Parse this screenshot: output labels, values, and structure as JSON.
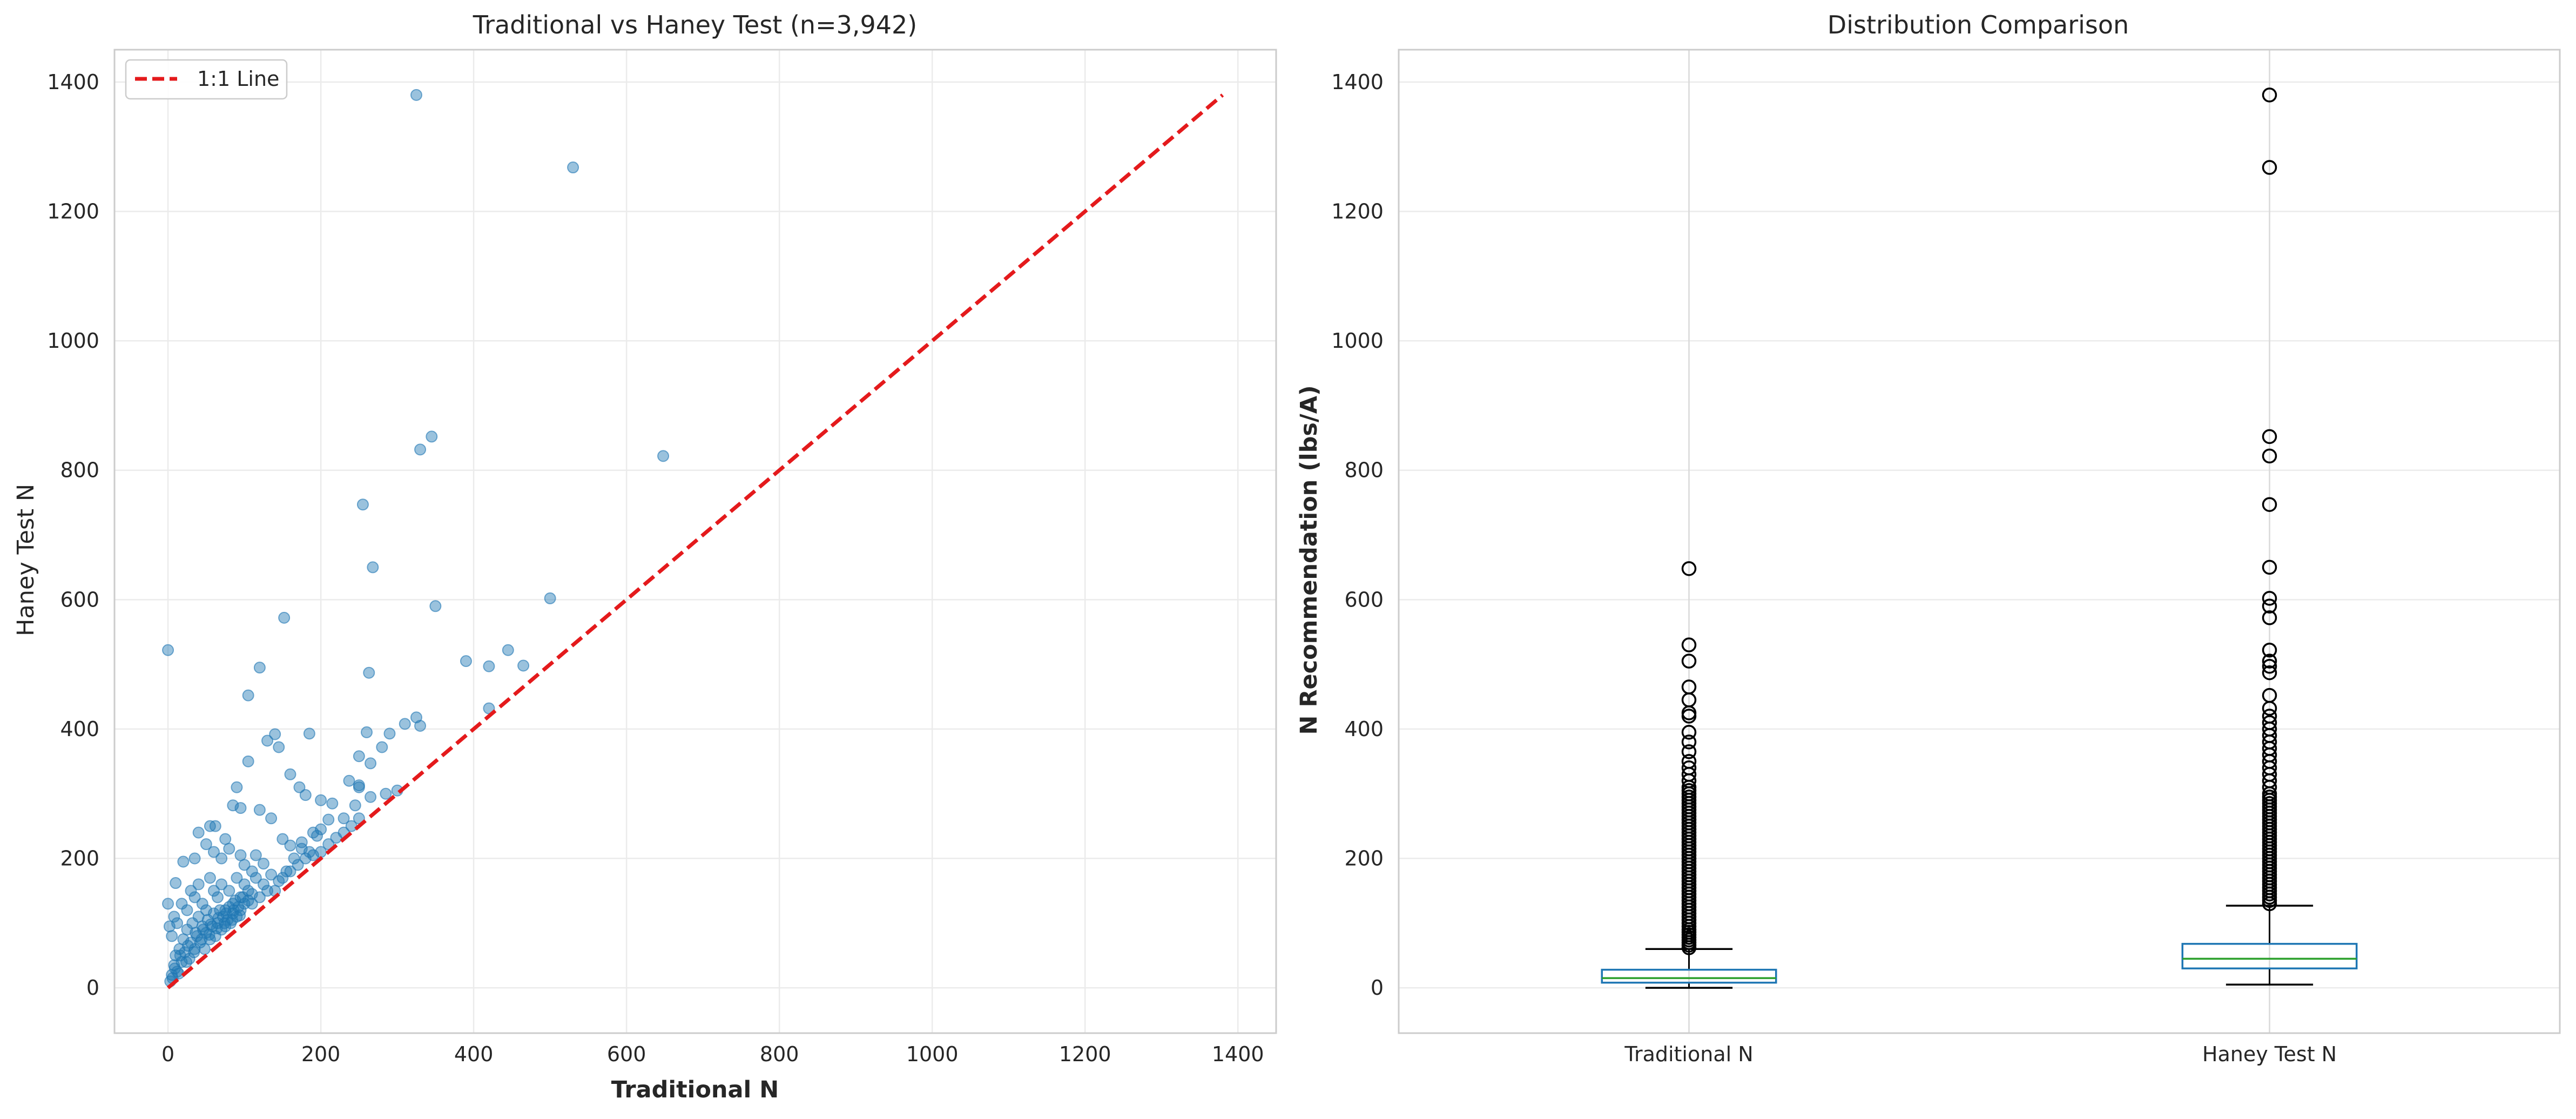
{
  "chart_data": [
    {
      "type": "scatter",
      "title": "Traditional vs Haney Test (n=3,942)",
      "xlabel": "Traditional N",
      "ylabel": "Haney Test N",
      "xlim": [
        -70,
        1450
      ],
      "ylim": [
        -70,
        1450
      ],
      "xticks": [
        0,
        200,
        400,
        600,
        800,
        1000,
        1200,
        1400
      ],
      "yticks": [
        0,
        200,
        400,
        600,
        800,
        1000,
        1200,
        1400
      ],
      "grid": true,
      "legend": {
        "placement": "top-left",
        "entries": [
          "1:1 Line"
        ]
      },
      "reference_line": {
        "name": "1:1 Line",
        "from": [
          0,
          0
        ],
        "to": [
          1380,
          1380
        ],
        "color": "#e41a1c",
        "style": "dashed"
      },
      "point_color": "#1f77b4",
      "series": [
        {
          "points": [
            [
              0,
              522
            ],
            [
              325,
              1380
            ],
            [
              530,
              1268
            ],
            [
              345,
              852
            ],
            [
              330,
              832
            ],
            [
              648,
              822
            ],
            [
              255,
              747
            ],
            [
              268,
              650
            ],
            [
              152,
              572
            ],
            [
              350,
              590
            ],
            [
              500,
              602
            ],
            [
              120,
              495
            ],
            [
              263,
              487
            ],
            [
              390,
              505
            ],
            [
              420,
              497
            ],
            [
              445,
              522
            ],
            [
              465,
              498
            ],
            [
              105,
              452
            ],
            [
              420,
              432
            ],
            [
              325,
              418
            ],
            [
              330,
              405
            ],
            [
              310,
              408
            ],
            [
              290,
              393
            ],
            [
              280,
              372
            ],
            [
              260,
              395
            ],
            [
              250,
              358
            ],
            [
              265,
              347
            ],
            [
              250,
              313
            ],
            [
              140,
              392
            ],
            [
              185,
              393
            ],
            [
              130,
              382
            ],
            [
              145,
              372
            ],
            [
              105,
              350
            ],
            [
              160,
              330
            ],
            [
              172,
              310
            ],
            [
              180,
              298
            ],
            [
              200,
              290
            ],
            [
              215,
              285
            ],
            [
              237,
              320
            ],
            [
              250,
              310
            ],
            [
              285,
              300
            ],
            [
              300,
              305
            ],
            [
              210,
              260
            ],
            [
              230,
              262
            ],
            [
              265,
              295
            ],
            [
              245,
              282
            ],
            [
              200,
              245
            ],
            [
              190,
              240
            ],
            [
              175,
              225
            ],
            [
              160,
              220
            ],
            [
              150,
              230
            ],
            [
              135,
              262
            ],
            [
              120,
              275
            ],
            [
              95,
              278
            ],
            [
              90,
              310
            ],
            [
              85,
              282
            ],
            [
              75,
              230
            ],
            [
              62,
              250
            ],
            [
              55,
              250
            ],
            [
              40,
              240
            ],
            [
              20,
              195
            ],
            [
              10,
              162
            ],
            [
              35,
              200
            ],
            [
              50,
              222
            ],
            [
              60,
              210
            ],
            [
              70,
              200
            ],
            [
              80,
              215
            ],
            [
              95,
              205
            ],
            [
              100,
              190
            ],
            [
              110,
              180
            ],
            [
              115,
              205
            ],
            [
              125,
              192
            ],
            [
              135,
              175
            ],
            [
              145,
              165
            ],
            [
              155,
              180
            ],
            [
              165,
              200
            ],
            [
              175,
              215
            ],
            [
              185,
              210
            ],
            [
              195,
              235
            ],
            [
              0,
              130
            ],
            [
              2,
              95
            ],
            [
              5,
              80
            ],
            [
              8,
              110
            ],
            [
              12,
              100
            ],
            [
              18,
              130
            ],
            [
              25,
              120
            ],
            [
              30,
              150
            ],
            [
              35,
              140
            ],
            [
              40,
              160
            ],
            [
              45,
              130
            ],
            [
              50,
              120
            ],
            [
              55,
              170
            ],
            [
              60,
              150
            ],
            [
              65,
              140
            ],
            [
              70,
              160
            ],
            [
              75,
              120
            ],
            [
              80,
              150
            ],
            [
              85,
              130
            ],
            [
              90,
              170
            ],
            [
              95,
              140
            ],
            [
              100,
              160
            ],
            [
              105,
              150
            ],
            [
              110,
              130
            ],
            [
              115,
              170
            ],
            [
              120,
              140
            ],
            [
              125,
              160
            ],
            [
              130,
              150
            ],
            [
              140,
              150
            ],
            [
              150,
              170
            ],
            [
              160,
              180
            ],
            [
              170,
              190
            ],
            [
              180,
              200
            ],
            [
              190,
              205
            ],
            [
              200,
              210
            ],
            [
              210,
              222
            ],
            [
              220,
              232
            ],
            [
              230,
              240
            ],
            [
              240,
              250
            ],
            [
              250,
              262
            ],
            [
              5,
              20
            ],
            [
              8,
              35
            ],
            [
              10,
              50
            ],
            [
              12,
              25
            ],
            [
              15,
              60
            ],
            [
              18,
              40
            ],
            [
              20,
              75
            ],
            [
              22,
              55
            ],
            [
              25,
              90
            ],
            [
              28,
              45
            ],
            [
              30,
              70
            ],
            [
              32,
              100
            ],
            [
              35,
              60
            ],
            [
              38,
              80
            ],
            [
              40,
              110
            ],
            [
              42,
              70
            ],
            [
              45,
              95
            ],
            [
              48,
              60
            ],
            [
              50,
              85
            ],
            [
              52,
              105
            ],
            [
              55,
              75
            ],
            [
              58,
              95
            ],
            [
              60,
              115
            ],
            [
              62,
              80
            ],
            [
              65,
              100
            ],
            [
              68,
              120
            ],
            [
              70,
              90
            ],
            [
              72,
              110
            ],
            [
              75,
              95
            ],
            [
              78,
              105
            ],
            [
              80,
              125
            ],
            [
              82,
              100
            ],
            [
              85,
              115
            ],
            [
              88,
              135
            ],
            [
              90,
              110
            ],
            [
              92,
              125
            ],
            [
              95,
              120
            ],
            [
              98,
              140
            ],
            [
              100,
              130
            ],
            [
              105,
              135
            ],
            [
              110,
              145
            ],
            [
              3,
              10
            ],
            [
              6,
              15
            ],
            [
              9,
              30
            ],
            [
              14,
              22
            ],
            [
              16,
              50
            ],
            [
              24,
              40
            ],
            [
              26,
              65
            ],
            [
              34,
              55
            ],
            [
              36,
              85
            ],
            [
              44,
              75
            ],
            [
              46,
              90
            ],
            [
              54,
              82
            ],
            [
              56,
              98
            ],
            [
              64,
              92
            ],
            [
              66,
              108
            ],
            [
              74,
              100
            ],
            [
              76,
              115
            ],
            [
              84,
              105
            ],
            [
              86,
              120
            ],
            [
              94,
              112
            ]
          ]
        }
      ]
    },
    {
      "type": "box",
      "title": "Distribution Comparison",
      "xlabel": "",
      "ylabel": "N Recommendation (lbs/A)",
      "ylim": [
        -70,
        1450
      ],
      "yticks": [
        0,
        200,
        400,
        600,
        800,
        1000,
        1200,
        1400
      ],
      "grid": true,
      "categories": [
        "Traditional N",
        "Haney Test N"
      ],
      "box_color": "#1f77b4",
      "median_color": "#2ca02c",
      "boxes": [
        {
          "name": "Traditional N",
          "whisker_low": 0,
          "q1": 8,
          "median": 15,
          "q3": 28,
          "whisker_high": 60,
          "outliers": [
            62,
            66,
            70,
            74,
            78,
            82,
            86,
            90,
            95,
            100,
            105,
            110,
            115,
            120,
            125,
            130,
            135,
            140,
            145,
            150,
            155,
            160,
            165,
            170,
            175,
            180,
            185,
            190,
            195,
            200,
            205,
            210,
            215,
            220,
            225,
            230,
            235,
            240,
            245,
            250,
            255,
            260,
            265,
            270,
            275,
            280,
            285,
            290,
            295,
            300,
            305,
            310,
            320,
            330,
            340,
            350,
            365,
            380,
            395,
            420,
            425,
            445,
            465,
            505,
            530,
            648
          ]
        },
        {
          "name": "Haney Test N",
          "whisker_low": 5,
          "q1": 30,
          "median": 45,
          "q3": 68,
          "whisker_high": 127,
          "outliers": [
            130,
            135,
            140,
            145,
            150,
            155,
            160,
            165,
            170,
            175,
            180,
            185,
            190,
            195,
            200,
            205,
            210,
            215,
            220,
            225,
            230,
            235,
            240,
            245,
            250,
            255,
            260,
            265,
            270,
            275,
            280,
            285,
            290,
            295,
            300,
            310,
            320,
            330,
            340,
            350,
            360,
            370,
            380,
            390,
            400,
            410,
            420,
            432,
            452,
            487,
            497,
            505,
            522,
            572,
            590,
            602,
            650,
            747,
            822,
            852,
            1268,
            1380
          ]
        }
      ]
    }
  ]
}
